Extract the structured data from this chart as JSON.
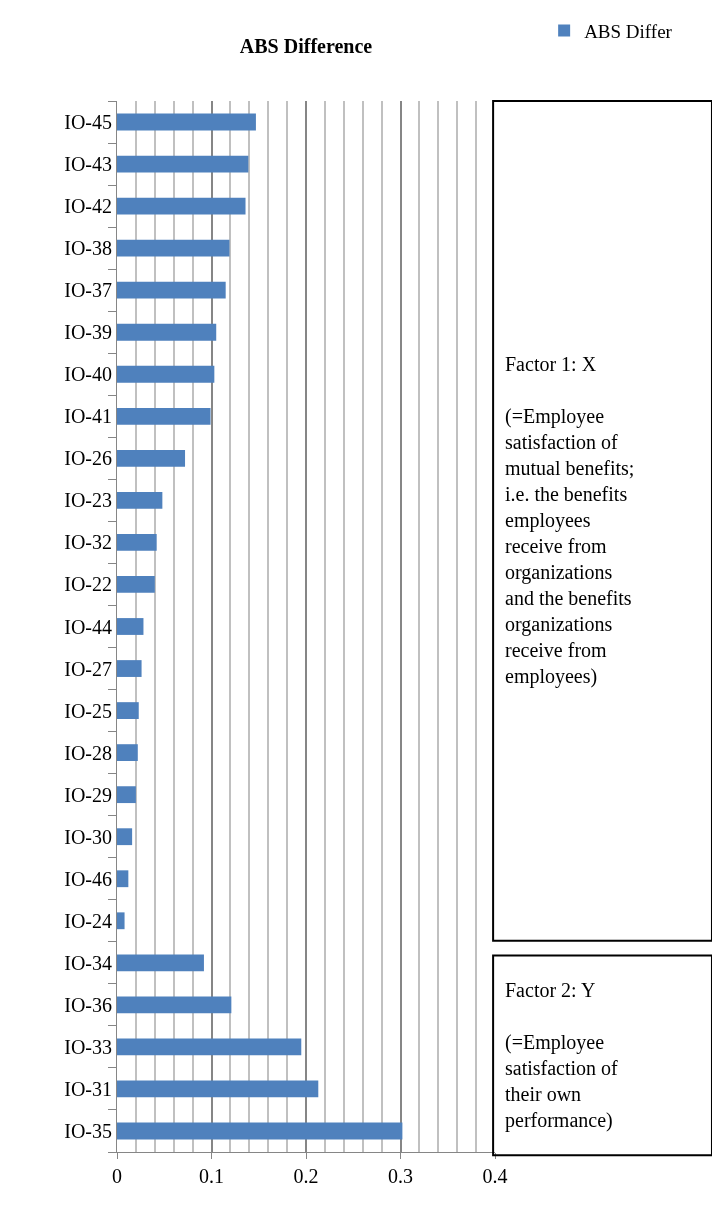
{
  "chart_data": {
    "type": "bar",
    "orientation": "horizontal",
    "title": "ABS Difference",
    "categories": [
      "IO-45",
      "IO-43",
      "IO-42",
      "IO-38",
      "IO-37",
      "IO-39",
      "IO-40",
      "IO-41",
      "IO-26",
      "IO-23",
      "IO-32",
      "IO-22",
      "IO-44",
      "IO-27",
      "IO-25",
      "IO-28",
      "IO-29",
      "IO-30",
      "IO-46",
      "IO-24",
      "IO-34",
      "IO-36",
      "IO-33",
      "IO-31",
      "IO-35"
    ],
    "series": [
      {
        "name": "ABS Differ",
        "color": "#4f81bd",
        "values": [
          0.147,
          0.139,
          0.136,
          0.119,
          0.115,
          0.105,
          0.103,
          0.099,
          0.072,
          0.048,
          0.042,
          0.04,
          0.028,
          0.026,
          0.023,
          0.022,
          0.02,
          0.016,
          0.012,
          0.008,
          0.092,
          0.121,
          0.195,
          0.213,
          0.302
        ]
      }
    ],
    "xlim": [
      0,
      0.4
    ],
    "xticks": [
      0,
      0.1,
      0.2,
      0.3,
      0.4
    ],
    "grid": "x",
    "legend": "top right",
    "annotations": [
      "Factor 1: X\n\n(=Employee\nsatisfaction of\nmutual benefits;\ni.e. the benefits\nemployees\nreceive from\norganizations\nand the benefits\norganizations\nreceive from\nemployees)",
      "Factor 2: Y\n\n(=Employee\nsatisfaction of\ntheir own\nperformance)"
    ]
  }
}
